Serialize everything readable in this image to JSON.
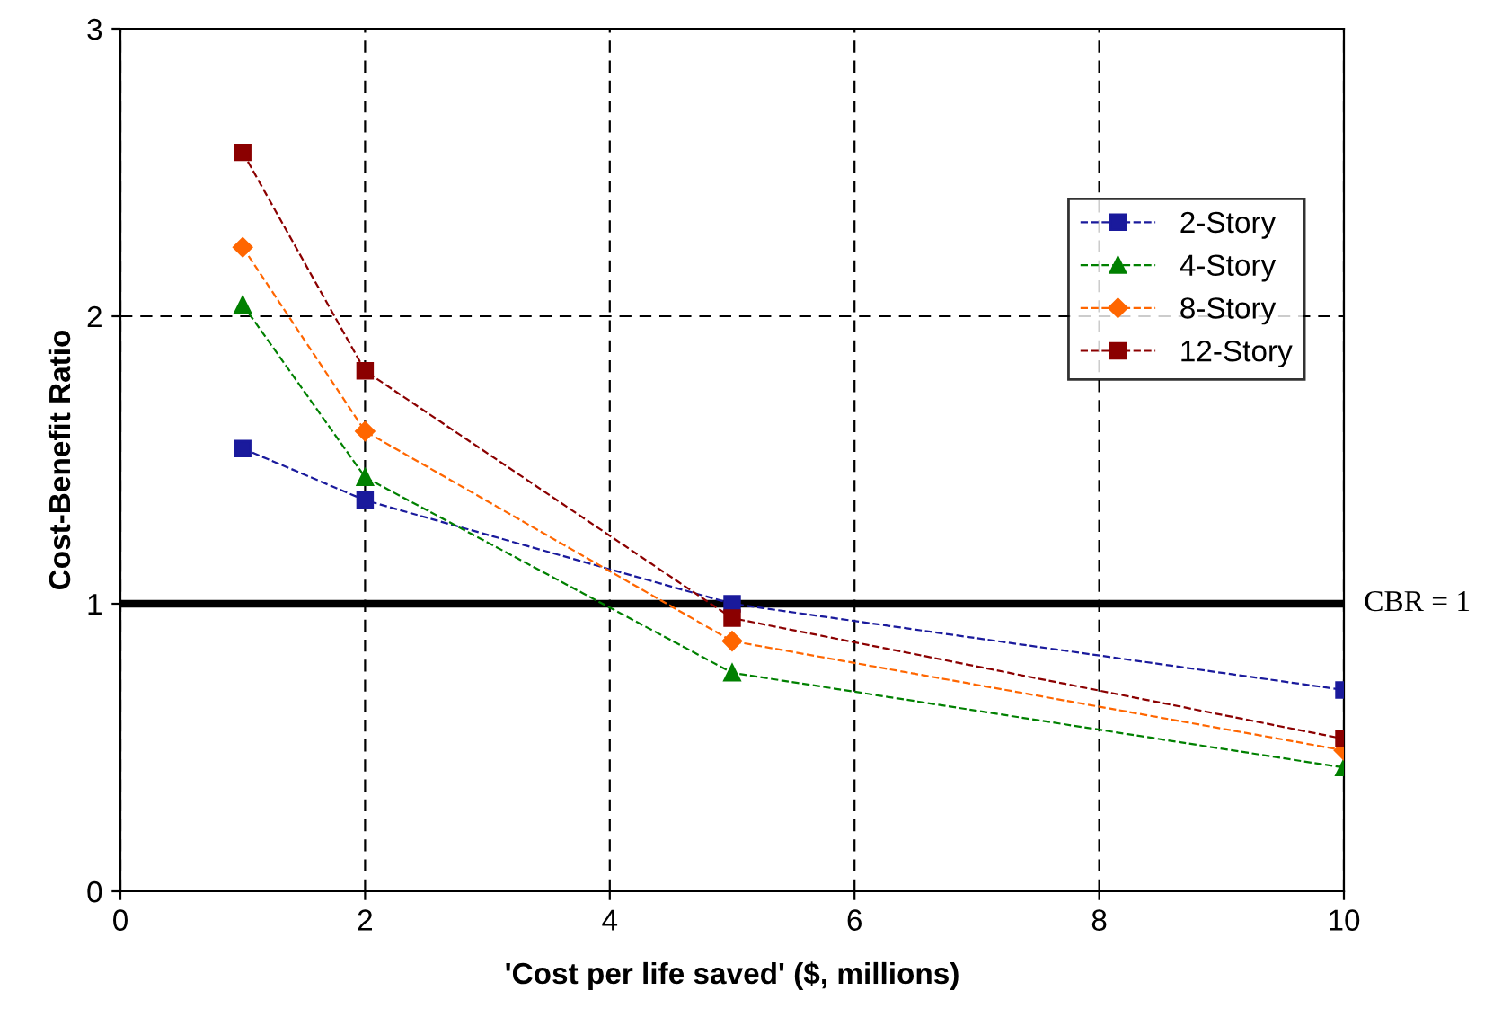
{
  "chart_data": {
    "type": "line",
    "xlabel": "'Cost per life saved' ($, millions)",
    "ylabel": "Cost-Benefit Ratio",
    "xlim": [
      0,
      10
    ],
    "xticks": [
      0,
      2,
      4,
      6,
      8,
      10
    ],
    "ylim": [
      0,
      3
    ],
    "yticks": [
      0,
      1,
      2,
      3
    ],
    "grid": true,
    "legend": "top right",
    "line_style": "dashed",
    "x": [
      1,
      2,
      5,
      10
    ],
    "series": [
      {
        "name": "2-Story",
        "color": "#1a1a9c",
        "marker": "square",
        "values": [
          1.54,
          1.36,
          1.0,
          0.7
        ]
      },
      {
        "name": "4-Story",
        "color": "#008000",
        "marker": "triangle",
        "values": [
          2.04,
          1.44,
          0.76,
          0.43
        ]
      },
      {
        "name": "8-Story",
        "color": "#ff6600",
        "marker": "diamond",
        "values": [
          2.24,
          1.6,
          0.87,
          0.49
        ]
      },
      {
        "name": "12-Story",
        "color": "#8b0000",
        "marker": "square",
        "values": [
          2.57,
          1.81,
          0.95,
          0.53
        ]
      }
    ],
    "ref_lines": [
      {
        "axis": "y",
        "value": 1,
        "label": "CBR = 1",
        "color": "#000000",
        "line_style": "solid"
      }
    ]
  }
}
